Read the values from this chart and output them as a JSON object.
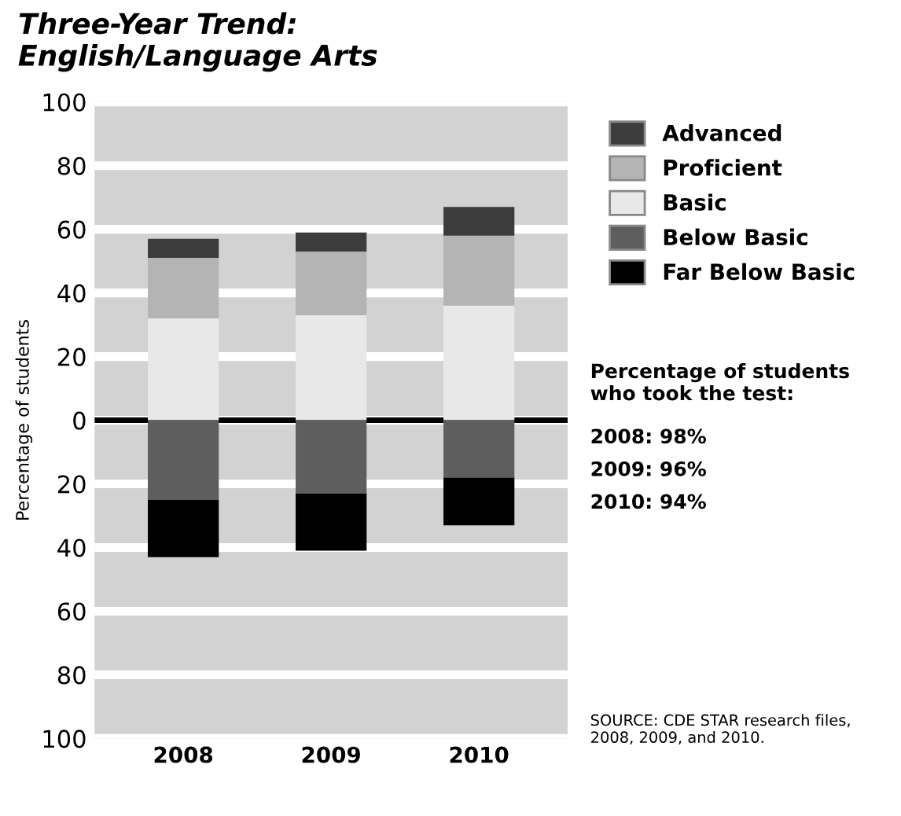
{
  "chart_data": {
    "type": "bar",
    "stacked": true,
    "title": "Three-Year Trend:\nEnglish/Language Arts",
    "ylabel": "Percentage of students",
    "categories": [
      "2008",
      "2009",
      "2010"
    ],
    "series": [
      {
        "name": "Basic",
        "color": "#e8e8e8",
        "values": [
          32,
          33,
          36
        ]
      },
      {
        "name": "Proficient",
        "color": "#b4b4b4",
        "values": [
          19,
          20,
          22
        ]
      },
      {
        "name": "Advanced",
        "color": "#3c3c3c",
        "values": [
          6,
          6,
          9
        ]
      },
      {
        "name": "Below Basic",
        "color": "#5e5e5e",
        "values": [
          -25,
          -23,
          -18
        ]
      },
      {
        "name": "Far Below Basic",
        "color": "#000000",
        "values": [
          -18,
          -18,
          -15
        ]
      }
    ],
    "ylim": [
      -100,
      100
    ],
    "yticks": [
      {
        "value": -100,
        "label": "100"
      },
      {
        "value": -80,
        "label": "80"
      },
      {
        "value": -60,
        "label": "60"
      },
      {
        "value": -40,
        "label": "40"
      },
      {
        "value": -20,
        "label": "20"
      },
      0,
      20,
      40,
      60,
      80,
      100
    ],
    "grid": "y",
    "legend": "top right",
    "ref_lines": [
      {
        "axis": "y",
        "value": 0,
        "label": null,
        "color": "#000000"
      }
    ],
    "annotations": [
      "Percentage of students\nwho took the test:",
      "2008: 98%",
      "2009: 96%",
      "2010: 94%",
      "SOURCE: CDE STAR research files,\n2008, 2009, and 2010."
    ]
  }
}
